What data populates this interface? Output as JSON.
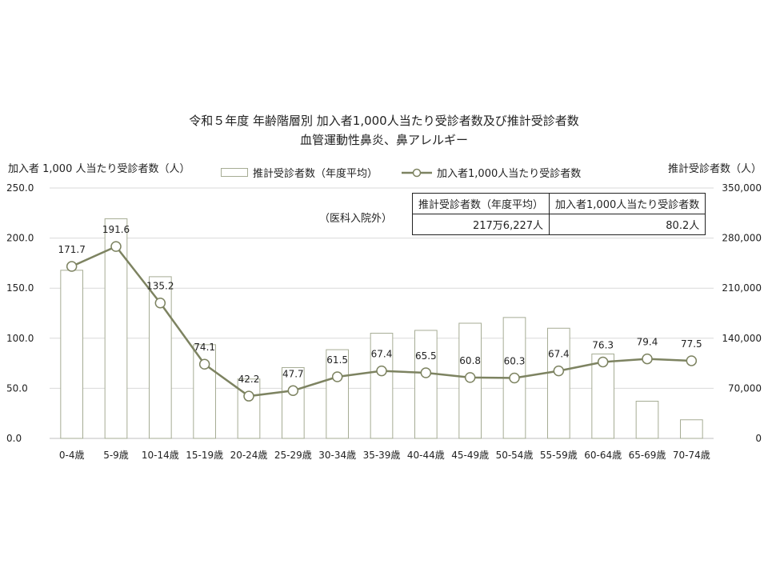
{
  "title_line1": "令和５年度 年齢階層別 加入者1,000人当たり受診者数及び推計受診者数",
  "title_line2": "血管運動性鼻炎、鼻アレルギー",
  "note": "（医科入院外）",
  "summary": {
    "header1": "推計受診者数（年度平均）",
    "header2": "加入者1,000人当たり受診者数",
    "value1": "217万6,227人",
    "value2": "80.2人"
  },
  "chart_data": {
    "type": "bar+line",
    "categories": [
      "0-4歳",
      "5-9歳",
      "10-14歳",
      "15-19歳",
      "20-24歳",
      "25-29歳",
      "30-34歳",
      "35-39歳",
      "40-44歳",
      "45-49歳",
      "50-54歳",
      "55-59歳",
      "60-64歳",
      "65-69歳",
      "70-74歳"
    ],
    "y_left": {
      "label": "加入者 1,000 人当たり受診者数（人）",
      "lim": [
        0,
        250
      ],
      "ticks": [
        "0.0",
        "50.0",
        "100.0",
        "150.0",
        "200.0",
        "250.0"
      ]
    },
    "y_right": {
      "label": "推計受診者数（人）",
      "lim": [
        0,
        350000
      ],
      "ticks": [
        "0",
        "70,000",
        "140,000",
        "210,000",
        "280,000",
        "350,000"
      ]
    },
    "series": [
      {
        "name": "推計受診者数（年度平均）",
        "type": "bar",
        "axis": "right",
        "values": [
          235000,
          307000,
          226000,
          131000,
          83000,
          99000,
          124000,
          147000,
          151000,
          161000,
          169000,
          154000,
          118000,
          52000,
          26000
        ]
      },
      {
        "name": "加入者1,000人当たり受診者数",
        "type": "line",
        "axis": "left",
        "values": [
          171.7,
          191.6,
          135.2,
          74.1,
          42.2,
          47.7,
          61.5,
          67.4,
          65.5,
          60.8,
          60.3,
          67.4,
          76.3,
          79.4,
          77.5
        ],
        "labels": [
          "171.7",
          "191.6",
          "135.2",
          "74.1",
          "42.2",
          "47.7",
          "61.5",
          "67.4",
          "65.5",
          "60.8",
          "60.3",
          "67.4",
          "76.3",
          "79.4",
          "77.5"
        ]
      }
    ],
    "grid": true,
    "legend": "top",
    "colors": {
      "line": "#7d8361",
      "bar_border": "#a6ac94",
      "grid": "#d9d9d9"
    }
  }
}
